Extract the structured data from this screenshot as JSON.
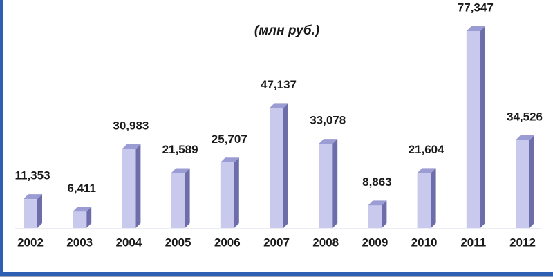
{
  "chart_data": {
    "type": "bar",
    "subtitle": "(млн руб.)",
    "categories": [
      "2002",
      "2003",
      "2004",
      "2005",
      "2006",
      "2007",
      "2008",
      "2009",
      "2010",
      "2011",
      "2012"
    ],
    "values": [
      11353,
      6411,
      30983,
      21589,
      25707,
      47137,
      33078,
      8863,
      21604,
      77347,
      34526
    ],
    "value_labels": [
      "11,353",
      "6,411",
      "30,983",
      "21,589",
      "25,707",
      "47,137",
      "33,078",
      "8,863",
      "21,604",
      "77,347",
      "34,526"
    ],
    "color": "#c9c9ee"
  }
}
